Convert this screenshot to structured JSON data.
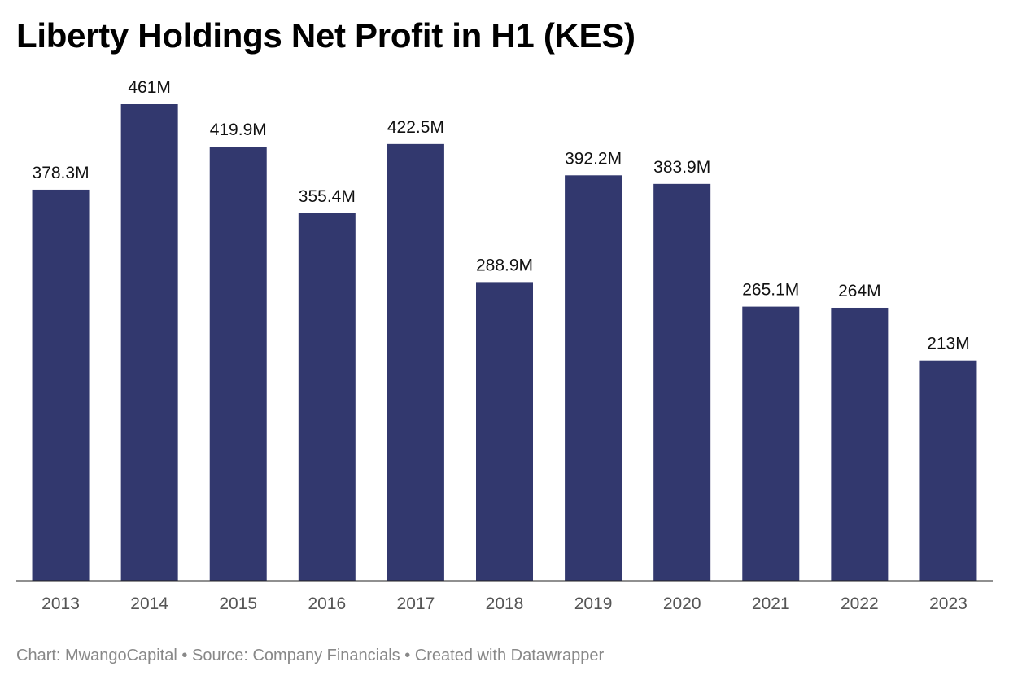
{
  "title": "Liberty Holdings Net Profit in H1 (KES)",
  "colors": {
    "bar": "#32386e",
    "axis": "#222222",
    "label": "#111111",
    "tick": "#555555",
    "footer": "#888888"
  },
  "chart_data": {
    "type": "bar",
    "title": "Liberty Holdings Net Profit in H1 (KES)",
    "categories": [
      "2013",
      "2014",
      "2015",
      "2016",
      "2017",
      "2018",
      "2019",
      "2020",
      "2021",
      "2022",
      "2023"
    ],
    "values": [
      378.3,
      461,
      419.9,
      355.4,
      422.5,
      288.9,
      392.2,
      383.9,
      265.1,
      264,
      213
    ],
    "value_labels": [
      "378.3M",
      "461M",
      "419.9M",
      "355.4M",
      "422.5M",
      "288.9M",
      "392.2M",
      "383.9M",
      "265.1M",
      "264M",
      "213M"
    ],
    "unit": "M",
    "xlabel": "",
    "ylabel": "",
    "ylim": [
      0,
      461
    ],
    "grid": false,
    "legend": "none"
  },
  "footer": {
    "chart_credit": "Chart: MwangoCapital",
    "separator": " • ",
    "source": "Source: Company Financials",
    "created": "Created with Datawrapper"
  }
}
